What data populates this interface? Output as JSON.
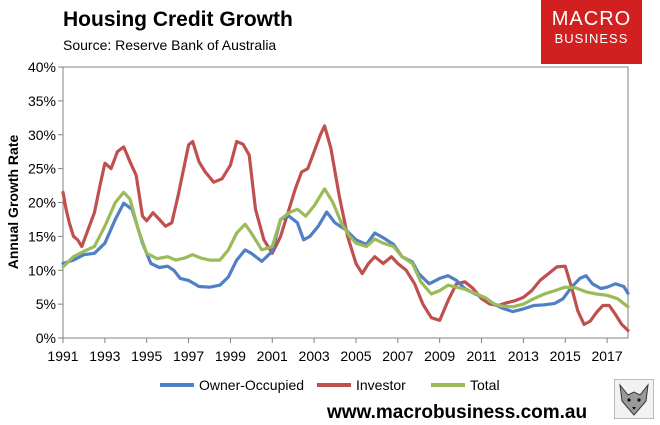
{
  "header": {
    "title": "Housing Credit Growth",
    "subtitle": "Source: Reserve Bank of Australia"
  },
  "logo": {
    "line1": "MACRO",
    "line2": "BUSINESS"
  },
  "footer": {
    "url": "www.macrobusiness.com.au"
  },
  "colors": {
    "owner": "#4f7fc4",
    "investor": "#c0504d",
    "total": "#9bbb59"
  },
  "chart_data": {
    "type": "line",
    "title": "Housing Credit Growth",
    "subtitle": "Source: Reserve Bank of Australia",
    "xlabel": "",
    "ylabel": "Annual Growth Rate",
    "xlim": [
      1991.0,
      2018.0
    ],
    "ylim": [
      0,
      40
    ],
    "x_ticks": [
      1991,
      1993,
      1995,
      1997,
      1999,
      2001,
      2003,
      2005,
      2007,
      2009,
      2011,
      2013,
      2015,
      2017
    ],
    "y_ticks": [
      0,
      5,
      10,
      15,
      20,
      25,
      30,
      35,
      40
    ],
    "y_tick_labels": [
      "0%",
      "5%",
      "10%",
      "15%",
      "20%",
      "25%",
      "30%",
      "35%",
      "40%"
    ],
    "grid": false,
    "legend": "bottom",
    "series": [
      {
        "name": "Owner-Occupied",
        "color": "#4f7fc4",
        "points": [
          [
            1991.0,
            11.0
          ],
          [
            1991.5,
            11.5
          ],
          [
            1992.0,
            12.3
          ],
          [
            1992.5,
            12.5
          ],
          [
            1993.0,
            14.0
          ],
          [
            1993.5,
            17.5
          ],
          [
            1993.9,
            19.9
          ],
          [
            1994.3,
            19.0
          ],
          [
            1994.8,
            14.0
          ],
          [
            1995.2,
            11.0
          ],
          [
            1995.6,
            10.4
          ],
          [
            1996.0,
            10.6
          ],
          [
            1996.3,
            10.0
          ],
          [
            1996.6,
            8.8
          ],
          [
            1997.0,
            8.5
          ],
          [
            1997.5,
            7.6
          ],
          [
            1998.0,
            7.5
          ],
          [
            1998.5,
            7.8
          ],
          [
            1998.9,
            9.0
          ],
          [
            1999.3,
            11.5
          ],
          [
            1999.7,
            13.0
          ],
          [
            2000.0,
            12.5
          ],
          [
            2000.5,
            11.3
          ],
          [
            2001.0,
            12.8
          ],
          [
            2001.4,
            17.5
          ],
          [
            2001.8,
            18.0
          ],
          [
            2002.2,
            17.0
          ],
          [
            2002.5,
            14.5
          ],
          [
            2002.8,
            15.0
          ],
          [
            2003.2,
            16.5
          ],
          [
            2003.6,
            18.6
          ],
          [
            2004.0,
            17.0
          ],
          [
            2004.5,
            16.0
          ],
          [
            2005.0,
            14.5
          ],
          [
            2005.5,
            13.8
          ],
          [
            2005.9,
            15.5
          ],
          [
            2006.3,
            14.8
          ],
          [
            2006.8,
            13.8
          ],
          [
            2007.2,
            12.0
          ],
          [
            2007.7,
            11.2
          ],
          [
            2008.0,
            9.5
          ],
          [
            2008.5,
            8.0
          ],
          [
            2009.0,
            8.8
          ],
          [
            2009.4,
            9.2
          ],
          [
            2009.8,
            8.5
          ],
          [
            2010.2,
            7.3
          ],
          [
            2010.7,
            6.5
          ],
          [
            2011.2,
            5.9
          ],
          [
            2011.6,
            5.0
          ],
          [
            2012.0,
            4.4
          ],
          [
            2012.5,
            3.9
          ],
          [
            2013.0,
            4.3
          ],
          [
            2013.5,
            4.8
          ],
          [
            2014.0,
            4.9
          ],
          [
            2014.5,
            5.1
          ],
          [
            2014.9,
            5.8
          ],
          [
            2015.3,
            7.5
          ],
          [
            2015.7,
            8.8
          ],
          [
            2016.0,
            9.2
          ],
          [
            2016.3,
            8.0
          ],
          [
            2016.7,
            7.3
          ],
          [
            2017.0,
            7.5
          ],
          [
            2017.4,
            8.0
          ],
          [
            2017.8,
            7.6
          ],
          [
            2018.0,
            6.6
          ]
        ]
      },
      {
        "name": "Investor",
        "color": "#c0504d",
        "points": [
          [
            1991.0,
            21.5
          ],
          [
            1991.15,
            19.0
          ],
          [
            1991.3,
            17.0
          ],
          [
            1991.5,
            15.0
          ],
          [
            1991.7,
            14.5
          ],
          [
            1991.9,
            13.5
          ],
          [
            1992.2,
            16.0
          ],
          [
            1992.5,
            18.5
          ],
          [
            1992.8,
            23.0
          ],
          [
            1993.0,
            25.8
          ],
          [
            1993.3,
            25.0
          ],
          [
            1993.6,
            27.5
          ],
          [
            1993.9,
            28.2
          ],
          [
            1994.2,
            26.0
          ],
          [
            1994.5,
            24.0
          ],
          [
            1994.8,
            18.0
          ],
          [
            1995.0,
            17.3
          ],
          [
            1995.3,
            18.5
          ],
          [
            1995.6,
            17.5
          ],
          [
            1995.9,
            16.5
          ],
          [
            1996.2,
            17.0
          ],
          [
            1996.5,
            21.0
          ],
          [
            1996.8,
            25.5
          ],
          [
            1997.0,
            28.5
          ],
          [
            1997.2,
            29.0
          ],
          [
            1997.5,
            26.0
          ],
          [
            1997.8,
            24.5
          ],
          [
            1998.2,
            23.0
          ],
          [
            1998.6,
            23.5
          ],
          [
            1999.0,
            25.5
          ],
          [
            1999.3,
            29.0
          ],
          [
            1999.6,
            28.6
          ],
          [
            1999.9,
            27.0
          ],
          [
            2000.2,
            19.0
          ],
          [
            2000.6,
            14.5
          ],
          [
            2001.0,
            12.5
          ],
          [
            2001.4,
            15.0
          ],
          [
            2001.8,
            19.0
          ],
          [
            2002.1,
            22.0
          ],
          [
            2002.4,
            24.5
          ],
          [
            2002.7,
            25.0
          ],
          [
            2003.0,
            27.5
          ],
          [
            2003.3,
            30.0
          ],
          [
            2003.5,
            31.3
          ],
          [
            2003.8,
            28.0
          ],
          [
            2004.2,
            21.0
          ],
          [
            2004.6,
            15.0
          ],
          [
            2005.0,
            11.0
          ],
          [
            2005.3,
            9.5
          ],
          [
            2005.6,
            11.0
          ],
          [
            2005.9,
            12.0
          ],
          [
            2006.3,
            11.0
          ],
          [
            2006.7,
            12.0
          ],
          [
            2007.0,
            11.0
          ],
          [
            2007.4,
            10.0
          ],
          [
            2007.8,
            8.0
          ],
          [
            2008.2,
            5.0
          ],
          [
            2008.6,
            3.0
          ],
          [
            2009.0,
            2.6
          ],
          [
            2009.4,
            5.5
          ],
          [
            2009.8,
            8.0
          ],
          [
            2010.2,
            8.3
          ],
          [
            2010.6,
            7.3
          ],
          [
            2011.0,
            5.8
          ],
          [
            2011.4,
            5.0
          ],
          [
            2011.8,
            4.8
          ],
          [
            2012.2,
            5.2
          ],
          [
            2012.6,
            5.5
          ],
          [
            2013.0,
            6.0
          ],
          [
            2013.4,
            7.0
          ],
          [
            2013.8,
            8.5
          ],
          [
            2014.2,
            9.5
          ],
          [
            2014.6,
            10.5
          ],
          [
            2015.0,
            10.6
          ],
          [
            2015.3,
            7.5
          ],
          [
            2015.6,
            4.0
          ],
          [
            2015.9,
            2.0
          ],
          [
            2016.2,
            2.5
          ],
          [
            2016.5,
            3.8
          ],
          [
            2016.8,
            4.8
          ],
          [
            2017.1,
            4.8
          ],
          [
            2017.4,
            3.5
          ],
          [
            2017.7,
            2.0
          ],
          [
            2018.0,
            1.1
          ]
        ]
      },
      {
        "name": "Total",
        "color": "#9bbb59",
        "points": [
          [
            1991.0,
            10.5
          ],
          [
            1991.5,
            12.0
          ],
          [
            1992.0,
            12.8
          ],
          [
            1992.5,
            13.5
          ],
          [
            1993.0,
            16.5
          ],
          [
            1993.5,
            20.0
          ],
          [
            1993.9,
            21.5
          ],
          [
            1994.2,
            20.5
          ],
          [
            1994.6,
            16.0
          ],
          [
            1995.0,
            12.5
          ],
          [
            1995.5,
            11.7
          ],
          [
            1996.0,
            12.0
          ],
          [
            1996.4,
            11.5
          ],
          [
            1996.8,
            11.8
          ],
          [
            1997.2,
            12.3
          ],
          [
            1997.6,
            11.8
          ],
          [
            1998.0,
            11.5
          ],
          [
            1998.5,
            11.5
          ],
          [
            1998.9,
            13.0
          ],
          [
            1999.3,
            15.5
          ],
          [
            1999.7,
            16.8
          ],
          [
            2000.0,
            15.5
          ],
          [
            2000.5,
            13.0
          ],
          [
            2001.0,
            13.5
          ],
          [
            2001.4,
            17.5
          ],
          [
            2001.8,
            18.5
          ],
          [
            2002.2,
            19.0
          ],
          [
            2002.6,
            18.0
          ],
          [
            2003.0,
            19.5
          ],
          [
            2003.5,
            22.0
          ],
          [
            2003.9,
            20.0
          ],
          [
            2004.3,
            17.0
          ],
          [
            2004.7,
            15.0
          ],
          [
            2005.0,
            14.0
          ],
          [
            2005.5,
            13.5
          ],
          [
            2005.9,
            14.6
          ],
          [
            2006.3,
            14.0
          ],
          [
            2006.8,
            13.5
          ],
          [
            2007.2,
            12.0
          ],
          [
            2007.7,
            11.0
          ],
          [
            2008.1,
            8.3
          ],
          [
            2008.6,
            6.5
          ],
          [
            2009.0,
            7.0
          ],
          [
            2009.4,
            7.8
          ],
          [
            2009.8,
            7.5
          ],
          [
            2010.2,
            7.2
          ],
          [
            2010.7,
            6.6
          ],
          [
            2011.2,
            5.9
          ],
          [
            2011.6,
            5.0
          ],
          [
            2012.0,
            4.7
          ],
          [
            2012.5,
            4.6
          ],
          [
            2013.0,
            5.0
          ],
          [
            2013.5,
            5.8
          ],
          [
            2014.0,
            6.5
          ],
          [
            2014.5,
            7.0
          ],
          [
            2015.0,
            7.5
          ],
          [
            2015.5,
            7.4
          ],
          [
            2016.0,
            6.8
          ],
          [
            2016.5,
            6.5
          ],
          [
            2017.0,
            6.3
          ],
          [
            2017.5,
            5.8
          ],
          [
            2018.0,
            4.6
          ]
        ]
      }
    ]
  }
}
